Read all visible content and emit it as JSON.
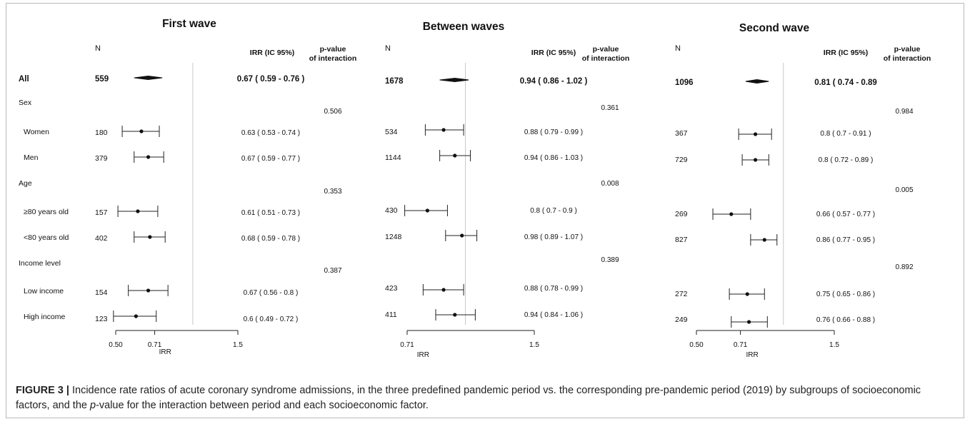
{
  "chart_data": {
    "type": "forest",
    "x_scale": "log",
    "reference_line": 1.0,
    "column_headers": {
      "n": "N",
      "irr": "IRR (IC 95%)",
      "p_line1": "p-value",
      "p_line2": "of interaction"
    },
    "row_labels": [
      "All",
      "Sex",
      "Women",
      "Men",
      "Age",
      "≥80 years old",
      "<80 years old",
      "Income level",
      "Low income",
      "High income"
    ],
    "row_kinds": [
      "overall",
      "header",
      "sub",
      "sub",
      "header",
      "sub",
      "sub",
      "header",
      "sub",
      "sub"
    ],
    "panels": [
      {
        "title": "First wave",
        "xlabel": "IRR",
        "xticks": [
          0.5,
          0.71,
          1.5
        ],
        "xtick_labels": [
          "0.50",
          "0.71",
          "1.5"
        ],
        "xlim": [
          0.5,
          1.5
        ],
        "p_values": [
          "0.506",
          "0.353",
          "0.387"
        ],
        "rows": [
          {
            "n": "559",
            "irr": 0.67,
            "lo": 0.59,
            "hi": 0.76,
            "label": "0.67 ( 0.59 - 0.76 )"
          },
          {
            "n": "180",
            "irr": 0.63,
            "lo": 0.53,
            "hi": 0.74,
            "label": "0.63 ( 0.53 - 0.74 )"
          },
          {
            "n": "379",
            "irr": 0.67,
            "lo": 0.59,
            "hi": 0.77,
            "label": "0.67 ( 0.59 - 0.77 )"
          },
          {
            "n": "157",
            "irr": 0.61,
            "lo": 0.51,
            "hi": 0.73,
            "label": "0.61 ( 0.51 - 0.73 )"
          },
          {
            "n": "402",
            "irr": 0.68,
            "lo": 0.59,
            "hi": 0.78,
            "label": "0.68 ( 0.59 - 0.78 )"
          },
          {
            "n": "154",
            "irr": 0.67,
            "lo": 0.56,
            "hi": 0.8,
            "label": "0.67 ( 0.56 - 0.8 )"
          },
          {
            "n": "123",
            "irr": 0.6,
            "lo": 0.49,
            "hi": 0.72,
            "label": "0.6 ( 0.49 - 0.72 )"
          }
        ]
      },
      {
        "title": "Between waves",
        "xlabel": "IRR",
        "xticks": [
          0.71,
          1.5
        ],
        "xtick_labels": [
          "0.71",
          "1.5"
        ],
        "xlim": [
          0.71,
          1.5
        ],
        "p_values": [
          "0.361",
          "0.008",
          "0.389"
        ],
        "rows": [
          {
            "n": "1678",
            "irr": 0.94,
            "lo": 0.86,
            "hi": 1.02,
            "label": "0.94 ( 0.86 - 1.02 )"
          },
          {
            "n": "534",
            "irr": 0.88,
            "lo": 0.79,
            "hi": 0.99,
            "label": "0.88 ( 0.79 - 0.99 )"
          },
          {
            "n": "1144",
            "irr": 0.94,
            "lo": 0.86,
            "hi": 1.03,
            "label": "0.94 ( 0.86 - 1.03 )"
          },
          {
            "n": "430",
            "irr": 0.8,
            "lo": 0.7,
            "hi": 0.9,
            "label": "0.8 ( 0.7 - 0.9 )"
          },
          {
            "n": "1248",
            "irr": 0.98,
            "lo": 0.89,
            "hi": 1.07,
            "label": "0.98 ( 0.89 - 1.07 )"
          },
          {
            "n": "423",
            "irr": 0.88,
            "lo": 0.78,
            "hi": 0.99,
            "label": "0.88 ( 0.78 - 0.99 )"
          },
          {
            "n": "411",
            "irr": 0.94,
            "lo": 0.84,
            "hi": 1.06,
            "label": "0.94 ( 0.84 - 1.06 )"
          }
        ]
      },
      {
        "title": "Second wave",
        "xlabel": "IRR",
        "xticks": [
          0.5,
          0.71,
          1.5
        ],
        "xtick_labels": [
          "0.50",
          "0.71",
          "1.5"
        ],
        "xlim": [
          0.5,
          1.5
        ],
        "p_values": [
          "0.984",
          "0.005",
          "0.892"
        ],
        "rows": [
          {
            "n": "1096",
            "irr": 0.81,
            "lo": 0.74,
            "hi": 0.89,
            "label": "0.81 ( 0.74 - 0.89"
          },
          {
            "n": "367",
            "irr": 0.8,
            "lo": 0.7,
            "hi": 0.91,
            "label": "0.8 ( 0.7 - 0.91 )"
          },
          {
            "n": "729",
            "irr": 0.8,
            "lo": 0.72,
            "hi": 0.89,
            "label": "0.8 ( 0.72 - 0.89 )"
          },
          {
            "n": "269",
            "irr": 0.66,
            "lo": 0.57,
            "hi": 0.77,
            "label": "0.66 ( 0.57 - 0.77 )"
          },
          {
            "n": "827",
            "irr": 0.86,
            "lo": 0.77,
            "hi": 0.95,
            "label": "0.86 ( 0.77 - 0.95 )"
          },
          {
            "n": "272",
            "irr": 0.75,
            "lo": 0.65,
            "hi": 0.86,
            "label": "0.75 ( 0.65 - 0.86 )"
          },
          {
            "n": "249",
            "irr": 0.76,
            "lo": 0.66,
            "hi": 0.88,
            "label": "0.76 ( 0.66 - 0.88 )"
          }
        ]
      }
    ]
  },
  "caption": {
    "label": "FIGURE 3 |",
    "text_before": " Incidence rate ratios of acute coronary syndrome admissions, in the three predefined pandemic period vs. the corresponding pre-pandemic period (2019) by subgroups of socioeconomic factors, and the ",
    "p_italic": "p",
    "text_after": "-value for the interaction between period and each socioeconomic factor."
  }
}
